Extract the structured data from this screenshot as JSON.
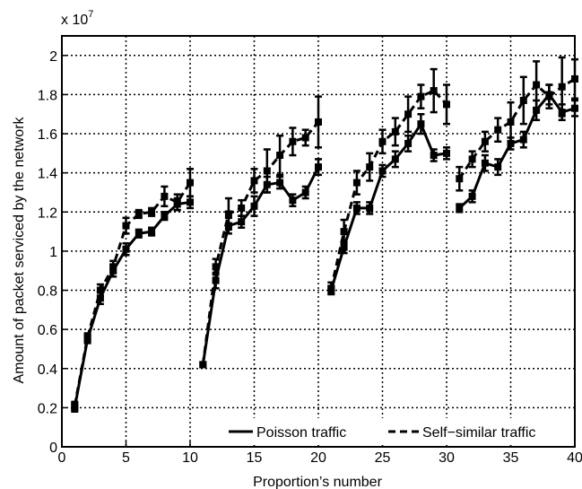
{
  "chart_data": {
    "type": "line",
    "title": "",
    "xlabel": "Proportion’s number",
    "ylabel": "Amount of packet serviced by the network",
    "y_multiplier": "x 10",
    "y_multiplier_exp": "7",
    "xlim": [
      0,
      40
    ],
    "ylim": [
      0,
      2.1
    ],
    "xticks": [
      0,
      5,
      10,
      15,
      20,
      25,
      30,
      35,
      40
    ],
    "yticks": [
      0,
      0.2,
      0.4,
      0.6,
      0.8,
      1,
      1.2,
      1.4,
      1.6,
      1.8,
      2
    ],
    "ytick_labels": [
      "0",
      "0.2",
      "0.4",
      "0.6",
      "0.8",
      "1",
      "1.2",
      "1.4",
      "1.6",
      "1.8",
      "2"
    ],
    "grid": true,
    "legend_position": "bottom-right",
    "series": [
      {
        "name": "Poisson traffic",
        "style": "solid",
        "color": "#000000",
        "segments": [
          {
            "x": [
              1,
              2,
              3,
              4,
              5,
              6,
              7,
              8,
              9,
              10
            ],
            "y": [
              0.2,
              0.55,
              0.76,
              0.9,
              1.01,
              1.09,
              1.1,
              1.18,
              1.24,
              1.25
            ],
            "err": [
              0.02,
              0.02,
              0.03,
              0.03,
              0.03,
              0.02,
              0.02,
              0.02,
              0.03,
              0.03
            ]
          },
          {
            "x": [
              11,
              12,
              13,
              14,
              15,
              16,
              17,
              18,
              19,
              20
            ],
            "y": [
              0.42,
              0.85,
              1.13,
              1.15,
              1.23,
              1.34,
              1.35,
              1.26,
              1.3,
              1.43
            ],
            "err": [
              0.0,
              0.04,
              0.04,
              0.03,
              0.05,
              0.04,
              0.03,
              0.03,
              0.03,
              0.04
            ]
          },
          {
            "x": [
              21,
              22,
              23,
              24,
              25,
              26,
              27,
              28,
              29,
              30
            ],
            "y": [
              0.8,
              1.02,
              1.22,
              1.22,
              1.41,
              1.47,
              1.55,
              1.65,
              1.49,
              1.5
            ],
            "err": [
              0.02,
              0.03,
              0.03,
              0.03,
              0.03,
              0.04,
              0.04,
              0.05,
              0.03,
              0.03
            ]
          },
          {
            "x": [
              31,
              32,
              33,
              34,
              35,
              36,
              37,
              38,
              39,
              40
            ],
            "y": [
              1.22,
              1.28,
              1.45,
              1.43,
              1.55,
              1.57,
              1.72,
              1.8,
              1.71,
              1.73
            ],
            "err": [
              0.02,
              0.03,
              0.04,
              0.04,
              0.03,
              0.04,
              0.05,
              0.05,
              0.04,
              0.04
            ]
          }
        ]
      },
      {
        "name": "Self−similar traffic",
        "style": "dashed",
        "color": "#000000",
        "segments": [
          {
            "x": [
              1,
              2,
              3,
              4,
              5,
              6,
              7,
              8,
              9,
              10
            ],
            "y": [
              0.21,
              0.56,
              0.8,
              0.92,
              1.13,
              1.19,
              1.2,
              1.28,
              1.25,
              1.35
            ],
            "err": [
              0.02,
              0.02,
              0.03,
              0.03,
              0.04,
              0.02,
              0.02,
              0.05,
              0.04,
              0.07
            ]
          },
          {
            "x": [
              11,
              12,
              13,
              14,
              15,
              16,
              17,
              18,
              19,
              20
            ],
            "y": [
              0.42,
              0.92,
              1.19,
              1.22,
              1.36,
              1.41,
              1.49,
              1.56,
              1.58,
              1.66
            ],
            "err": [
              0.0,
              0.04,
              0.08,
              0.04,
              0.06,
              0.11,
              0.1,
              0.07,
              0.04,
              0.13
            ]
          },
          {
            "x": [
              21,
              22,
              23,
              24,
              25,
              26,
              27,
              28,
              29,
              30
            ],
            "y": [
              0.81,
              1.1,
              1.35,
              1.43,
              1.56,
              1.61,
              1.7,
              1.79,
              1.82,
              1.75
            ],
            "err": [
              0.03,
              0.06,
              0.06,
              0.07,
              0.06,
              0.07,
              0.09,
              0.06,
              0.11,
              0.1
            ]
          },
          {
            "x": [
              31,
              32,
              33,
              34,
              35,
              36,
              37,
              38,
              39,
              40
            ],
            "y": [
              1.37,
              1.47,
              1.56,
              1.62,
              1.66,
              1.77,
              1.85,
              1.79,
              1.84,
              1.88
            ],
            "err": [
              0.06,
              0.04,
              0.05,
              0.06,
              0.1,
              0.12,
              0.12,
              0.06,
              0.15,
              0.1
            ]
          }
        ]
      }
    ]
  }
}
